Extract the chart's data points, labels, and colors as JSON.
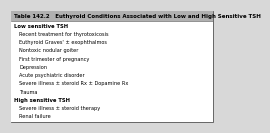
{
  "title": "Table 142.2   Euthyroid Conditions Associated with Low and High Sensitive TSH",
  "header_bg": "#b0b0b0",
  "table_bg": "#ffffff",
  "outer_bg": "#d8d8d8",
  "border_color": "#666666",
  "title_fontsize": 4.0,
  "row_fontsize": 3.6,
  "section_fontsize": 3.8,
  "sections": [
    {
      "label": "Low sensitive TSH",
      "is_section": true,
      "indent": false
    },
    {
      "label": "Recent treatment for thyrotoxicosis",
      "is_section": false,
      "indent": true
    },
    {
      "label": "Euthyroid Graves' ± exophthalmos",
      "is_section": false,
      "indent": true
    },
    {
      "label": "Nontoxic nodular goiter",
      "is_section": false,
      "indent": true
    },
    {
      "label": "First trimester of pregnancy",
      "is_section": false,
      "indent": true
    },
    {
      "label": "Depression",
      "is_section": false,
      "indent": true
    },
    {
      "label": "Acute psychiatric disorder",
      "is_section": false,
      "indent": true
    },
    {
      "label": "Severe illness ± steroid Rx ± Dopamine Rx",
      "is_section": false,
      "indent": true
    },
    {
      "label": "Trauma",
      "is_section": false,
      "indent": true
    },
    {
      "label": "High sensitive TSH",
      "is_section": true,
      "indent": false
    },
    {
      "label": "Severe illness ± steroid therapy",
      "is_section": false,
      "indent": true
    },
    {
      "label": "Renal failure",
      "is_section": false,
      "indent": true
    }
  ]
}
